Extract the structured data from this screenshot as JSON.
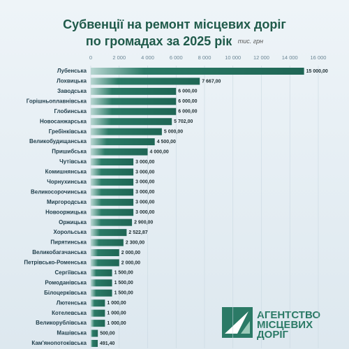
{
  "chart_data": {
    "type": "barh",
    "title": "Субвенції на ремонт місцевих доріг",
    "subtitle": "по громадах за 2025 рік",
    "unit": "тис. грн",
    "categories": [
      "Лубенська",
      "Лохвицька",
      "Заводська",
      "Горішньоплавнівська",
      "Глобинська",
      "Новосанжарська",
      "Гребінківська",
      "Великобудищанська",
      "Пришибська",
      "Чутівська",
      "Комишнянська",
      "Чорнухинська",
      "Великосорочинська",
      "Миргородська",
      "Новооржицька",
      "Оржицька",
      "Хорольська",
      "Пирятинська",
      "Великобагачанська",
      "Петрівсько-Роменська",
      "Сергіївська",
      "Ромоданівська",
      "Білоцерківська",
      "Лютенська",
      "Котелевська",
      "Великорублівська",
      "Машівська",
      "Кам'янопотоківська"
    ],
    "values": [
      15000,
      7667,
      6000,
      6000,
      6000,
      5702,
      5000,
      4500,
      4000,
      3000,
      3000,
      3000,
      3000,
      3000,
      3000,
      2900,
      2522.87,
      2300,
      2000,
      2000,
      1500,
      1500,
      1500,
      1000,
      1000,
      1000,
      500,
      491.4
    ],
    "value_labels": [
      "15 000,00",
      "7 667,00",
      "6 000,00",
      "6 000,00",
      "6 000,00",
      "5 702,00",
      "5 000,00",
      "4 500,00",
      "4 000,00",
      "3 000,00",
      "3 000,00",
      "3 000,00",
      "3 000,00",
      "3 000,00",
      "3 000,00",
      "2 900,00",
      "2 522,87",
      "2 300,00",
      "2 000,00",
      "2 000,00",
      "1 500,00",
      "1 500,00",
      "1 500,00",
      "1 000,00",
      "1 000,00",
      "1 000,00",
      "500,00",
      "491,40"
    ],
    "color": "#2b7a66",
    "xlim": [
      0,
      16000
    ],
    "xticks": [
      0,
      {
        "value": 2000,
        "label": "2 000"
      },
      {
        "value": 4000,
        "label": "4 000"
      },
      {
        "value": 6000,
        "label": "6 000"
      },
      {
        "value": 8000,
        "label": "8 000"
      },
      {
        "value": 10000,
        "label": "10 000"
      },
      {
        "value": 12000,
        "label": "12 000"
      },
      {
        "value": 14000,
        "label": "14 000"
      },
      {
        "value": 16000,
        "label": "16 000"
      }
    ],
    "grid": true
  },
  "logo": {
    "lines": [
      "АГЕНТСТВО",
      "МІСЦЕВИХ",
      "ДОРІГ"
    ]
  }
}
